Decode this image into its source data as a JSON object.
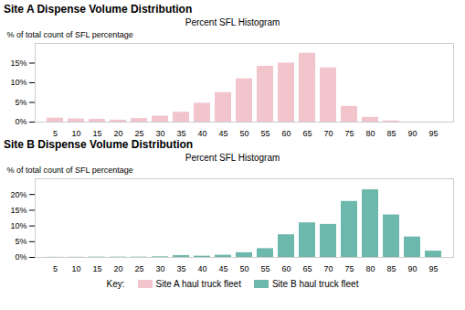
{
  "chart_data": [
    {
      "type": "bar",
      "title": "Site A Dispense Volume Distribution",
      "subtitle": "Percent SFL Histogram",
      "ylabel": "% of total count of SFL percentage",
      "categories": [
        5,
        10,
        15,
        20,
        25,
        30,
        35,
        40,
        45,
        50,
        55,
        60,
        65,
        70,
        75,
        80,
        85,
        90,
        95
      ],
      "series": [
        {
          "name": "Site A haul truck fleet",
          "color": "#f2c4cc",
          "values": [
            1.0,
            0.8,
            0.7,
            0.5,
            0.9,
            1.5,
            2.5,
            4.8,
            7.5,
            11.0,
            14.2,
            15.0,
            17.5,
            13.8,
            4.0,
            1.2,
            0.3,
            0.05,
            0.05
          ]
        }
      ],
      "ylim": [
        0,
        20
      ],
      "yticks": [
        {
          "value": 0,
          "label": "0%"
        },
        {
          "value": 5,
          "label": "5%"
        },
        {
          "value": 10,
          "label": "10%"
        },
        {
          "value": 15,
          "label": "15%"
        }
      ],
      "grid": false,
      "legend": "bottom"
    },
    {
      "type": "bar",
      "title": "Site B Dispense Volume Distribution",
      "subtitle": "Percent SFL Histogram",
      "ylabel": "% of total count of SFL percentage",
      "categories": [
        5,
        10,
        15,
        20,
        25,
        30,
        35,
        40,
        45,
        50,
        55,
        60,
        65,
        70,
        75,
        80,
        85,
        90,
        95
      ],
      "series": [
        {
          "name": "Site B haul truck fleet",
          "color": "#6db8ac",
          "values": [
            0.05,
            0.05,
            0.1,
            0.1,
            0.1,
            0.2,
            0.6,
            0.4,
            0.7,
            1.5,
            2.8,
            7.2,
            11.0,
            10.5,
            17.8,
            21.5,
            13.5,
            6.5,
            2.0
          ]
        }
      ],
      "ylim": [
        0,
        25
      ],
      "yticks": [
        {
          "value": 0,
          "label": "0%"
        },
        {
          "value": 5,
          "label": "5%"
        },
        {
          "value": 10,
          "label": "10%"
        },
        {
          "value": 15,
          "label": "15%"
        },
        {
          "value": 20,
          "label": "20%"
        }
      ],
      "grid": false,
      "legend": "bottom",
      "legend_title": "Key:"
    }
  ]
}
